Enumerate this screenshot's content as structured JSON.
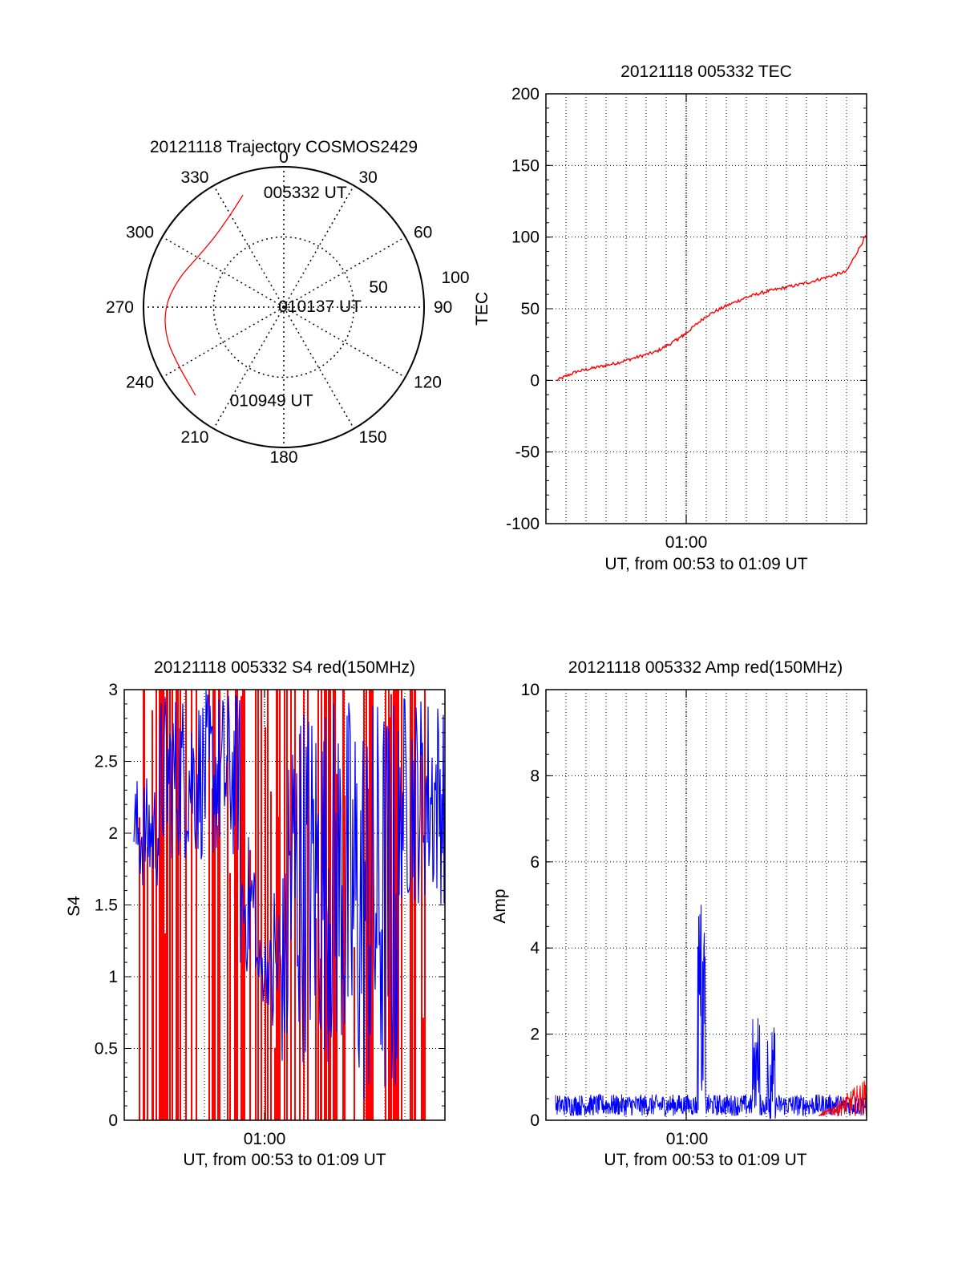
{
  "colors": {
    "red": "#ff0000",
    "blue": "#0000ff",
    "axis": "#000000",
    "grid": "#000000"
  },
  "chart_data": [
    {
      "id": "trajectory",
      "type": "polar",
      "title": "20121118 Trajectory COSMOS2429",
      "azimuth_labels": [
        "0",
        "30",
        "60",
        "90",
        "120",
        "150",
        "180",
        "210",
        "240",
        "270",
        "300",
        "330"
      ],
      "radial_labels": [
        "50",
        "100"
      ],
      "elevation_range": [
        0,
        100
      ],
      "trajectory_points": [
        {
          "az": 340,
          "el": 15
        },
        {
          "az": 330,
          "el": 24
        },
        {
          "az": 315,
          "el": 30
        },
        {
          "az": 300,
          "el": 29
        },
        {
          "az": 285,
          "el": 22
        },
        {
          "az": 270,
          "el": 15
        },
        {
          "az": 255,
          "el": 13
        },
        {
          "az": 240,
          "el": 14
        },
        {
          "az": 225,
          "el": 11
        }
      ],
      "annotations": [
        {
          "text": "005332 UT",
          "az": 350,
          "el": 17
        },
        {
          "text": "010137 UT",
          "az": 280,
          "el": 96
        },
        {
          "text": "010949 UT",
          "az": 210,
          "el": 23
        }
      ],
      "grid": true
    },
    {
      "id": "tec",
      "type": "line",
      "title": "20121118 005332 TEC",
      "xlabel": "UT, from 00:53 to 01:09 UT",
      "ylabel": "TEC",
      "xlim": [
        "00:53",
        "01:09"
      ],
      "ylim": [
        -100,
        200
      ],
      "yticks": [
        "200",
        "150",
        "100",
        "50",
        "0",
        "-50",
        "-100"
      ],
      "xticks": [
        "01:00"
      ],
      "grid": true,
      "series": [
        {
          "color": "red",
          "x": [
            "00:53:32",
            "00:54:30",
            "00:55:30",
            "00:56:30",
            "00:57:30",
            "00:58:30",
            "00:59:30",
            "01:00:00",
            "01:01:00",
            "01:02:00",
            "01:03:00",
            "01:04:00",
            "01:05:00",
            "01:06:00",
            "01:07:00",
            "01:08:00",
            "01:09:00"
          ],
          "y": [
            0,
            6,
            9,
            12,
            16,
            20,
            28,
            33,
            45,
            52,
            58,
            62,
            65,
            68,
            72,
            76,
            102
          ]
        }
      ]
    },
    {
      "id": "s4",
      "type": "line",
      "title": "20121118 005332 S4 red(150MHz)",
      "xlabel": "UT, from 00:53 to 01:09 UT",
      "ylabel": "S4",
      "xlim": [
        "00:53",
        "01:09"
      ],
      "ylim": [
        0,
        3
      ],
      "yticks": [
        "3",
        "2.5",
        "2",
        "1.5",
        "1",
        "0.5",
        "0"
      ],
      "xticks": [
        "01:00"
      ],
      "grid": true,
      "series": [
        {
          "color": "red",
          "description": "dense spikes 0-3 from 00:53 to 01:08"
        },
        {
          "color": "blue",
          "description": "noisy 1.3-3 early, dropping to 0.2-0.8 mid, high late"
        }
      ]
    },
    {
      "id": "amp",
      "type": "line",
      "title": "20121118 005332 Amp red(150MHz)",
      "xlabel": "UT, from 00:53 to 01:09 UT",
      "ylabel": "Amp",
      "xlim": [
        "00:53",
        "01:09"
      ],
      "ylim": [
        0,
        10
      ],
      "yticks": [
        "10",
        "8",
        "6",
        "4",
        "2",
        "0"
      ],
      "xticks": [
        "01:00"
      ],
      "grid": true,
      "series": [
        {
          "color": "blue",
          "baseline": 0.35,
          "spikes": [
            {
              "t": "01:00:45",
              "peak": 5.3
            },
            {
              "t": "01:03:30",
              "peak": 2.5
            },
            {
              "t": "01:04:15",
              "peak": 2.2
            }
          ]
        },
        {
          "color": "red",
          "baseline": 0.1,
          "late_noise_peak": 0.9
        }
      ]
    }
  ]
}
